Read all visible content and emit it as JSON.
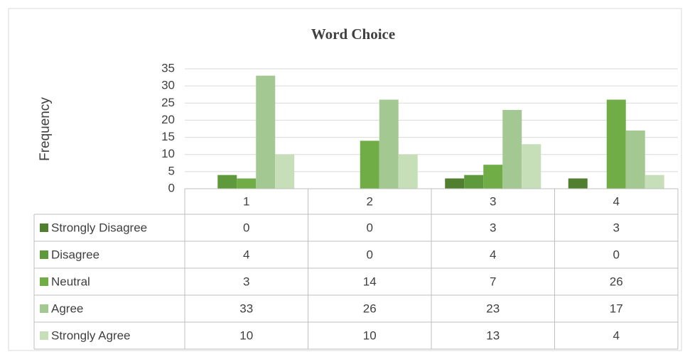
{
  "chart_data": {
    "type": "bar",
    "title": "Word Choice",
    "y_label": "Frequency",
    "categories": [
      "1",
      "2",
      "3",
      "4"
    ],
    "series": [
      {
        "name": "Strongly Disagree",
        "color": "#4f7f2f",
        "values": [
          0,
          0,
          3,
          3
        ]
      },
      {
        "name": "Disagree",
        "color": "#5e9a3c",
        "values": [
          4,
          0,
          4,
          0
        ]
      },
      {
        "name": "Neutral",
        "color": "#70ad47",
        "values": [
          3,
          14,
          7,
          26
        ]
      },
      {
        "name": "Agree",
        "color": "#a4c892",
        "values": [
          33,
          26,
          23,
          17
        ]
      },
      {
        "name": "Strongly Agree",
        "color": "#c6dfb9",
        "values": [
          10,
          10,
          13,
          4
        ]
      }
    ],
    "ylim": [
      0,
      35
    ],
    "yticks": [
      0,
      5,
      10,
      15,
      20,
      25,
      30,
      35
    ],
    "grid": true,
    "data_table": true
  }
}
